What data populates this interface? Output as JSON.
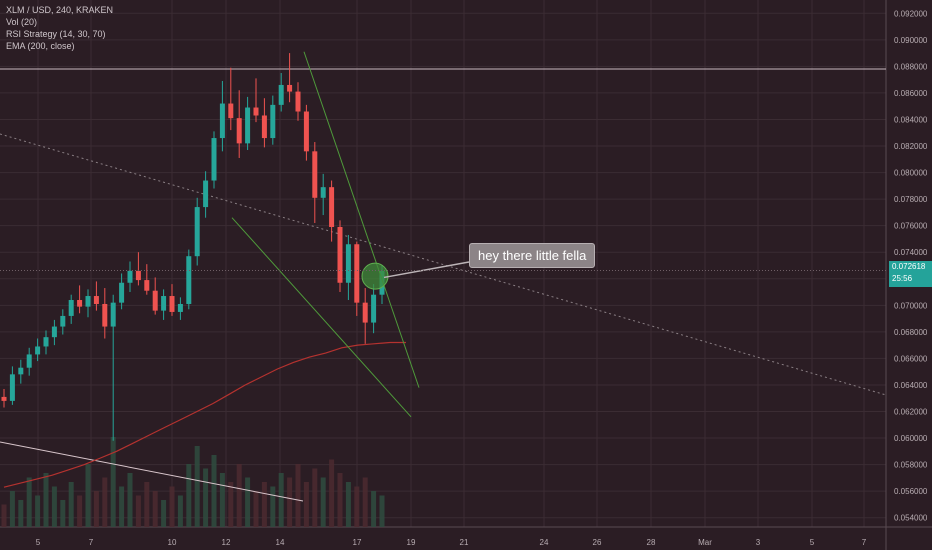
{
  "legend": {
    "symbol": "XLM / USD, 240, KRAKEN",
    "vol": "Vol (20)",
    "rsi": "RSI Strategy (14, 30, 70)",
    "ema": "EMA (200, close)"
  },
  "annotation": {
    "text": "hey there little fella"
  },
  "price_tag": {
    "price": "0.072618",
    "countdown": "25:56"
  },
  "colors": {
    "background": "#2b1d24",
    "grid": "#3b2c33",
    "up": "#26a69a",
    "down": "#ef5350",
    "ema": "#b5322f",
    "trendline": "#4f9a3b",
    "dotted_trend": "#8a7f84",
    "horizontal": "#c9b9c0"
  },
  "chart_data": {
    "type": "candlestick",
    "title": "XLM / USD, 240, KRAKEN",
    "y_axis": {
      "range": [
        0.0533,
        0.093
      ],
      "ticks": [
        "0.092000",
        "0.090000",
        "0.088000",
        "0.086000",
        "0.084000",
        "0.082000",
        "0.080000",
        "0.078000",
        "0.076000",
        "0.074000",
        "0.072000",
        "0.070000",
        "0.068000",
        "0.066000",
        "0.064000",
        "0.062000",
        "0.060000",
        "0.058000",
        "0.056000",
        "0.054000"
      ]
    },
    "x_axis": {
      "ticks": [
        "5",
        "7",
        "10",
        "12",
        "14",
        "17",
        "19",
        "21",
        "24",
        "26",
        "28",
        "Mar",
        "3",
        "5",
        "7"
      ]
    },
    "candles": [
      {
        "o": 0.0631,
        "h": 0.0637,
        "l": 0.0623,
        "c": 0.0628
      },
      {
        "o": 0.0628,
        "h": 0.0654,
        "l": 0.0625,
        "c": 0.0648
      },
      {
        "o": 0.0648,
        "h": 0.0659,
        "l": 0.0641,
        "c": 0.0653
      },
      {
        "o": 0.0653,
        "h": 0.0668,
        "l": 0.0647,
        "c": 0.0663
      },
      {
        "o": 0.0663,
        "h": 0.0675,
        "l": 0.0658,
        "c": 0.0669
      },
      {
        "o": 0.0669,
        "h": 0.0681,
        "l": 0.0663,
        "c": 0.0676
      },
      {
        "o": 0.0676,
        "h": 0.0689,
        "l": 0.067,
        "c": 0.0684
      },
      {
        "o": 0.0684,
        "h": 0.0697,
        "l": 0.0678,
        "c": 0.0692
      },
      {
        "o": 0.0692,
        "h": 0.0708,
        "l": 0.0686,
        "c": 0.0704
      },
      {
        "o": 0.0704,
        "h": 0.0715,
        "l": 0.0694,
        "c": 0.0699
      },
      {
        "o": 0.0699,
        "h": 0.0712,
        "l": 0.0691,
        "c": 0.0707
      },
      {
        "o": 0.0707,
        "h": 0.0718,
        "l": 0.0696,
        "c": 0.0701
      },
      {
        "o": 0.0701,
        "h": 0.0713,
        "l": 0.0675,
        "c": 0.0684
      },
      {
        "o": 0.0684,
        "h": 0.0708,
        "l": 0.0598,
        "c": 0.0702
      },
      {
        "o": 0.0702,
        "h": 0.0724,
        "l": 0.0697,
        "c": 0.0717
      },
      {
        "o": 0.0717,
        "h": 0.0733,
        "l": 0.071,
        "c": 0.0726
      },
      {
        "o": 0.0726,
        "h": 0.074,
        "l": 0.0715,
        "c": 0.0719
      },
      {
        "o": 0.0719,
        "h": 0.0731,
        "l": 0.0708,
        "c": 0.0711
      },
      {
        "o": 0.0711,
        "h": 0.0721,
        "l": 0.0693,
        "c": 0.0696
      },
      {
        "o": 0.0696,
        "h": 0.0712,
        "l": 0.0689,
        "c": 0.0707
      },
      {
        "o": 0.0707,
        "h": 0.0716,
        "l": 0.0692,
        "c": 0.0695
      },
      {
        "o": 0.0695,
        "h": 0.0706,
        "l": 0.0689,
        "c": 0.0701
      },
      {
        "o": 0.0701,
        "h": 0.0742,
        "l": 0.0697,
        "c": 0.0737
      },
      {
        "o": 0.0737,
        "h": 0.0781,
        "l": 0.073,
        "c": 0.0774
      },
      {
        "o": 0.0774,
        "h": 0.0801,
        "l": 0.0766,
        "c": 0.0794
      },
      {
        "o": 0.0794,
        "h": 0.0831,
        "l": 0.0788,
        "c": 0.0826
      },
      {
        "o": 0.0826,
        "h": 0.0869,
        "l": 0.0816,
        "c": 0.0852
      },
      {
        "o": 0.0852,
        "h": 0.0879,
        "l": 0.0832,
        "c": 0.0841
      },
      {
        "o": 0.0841,
        "h": 0.0862,
        "l": 0.0811,
        "c": 0.0822
      },
      {
        "o": 0.0822,
        "h": 0.0857,
        "l": 0.0817,
        "c": 0.0849
      },
      {
        "o": 0.0849,
        "h": 0.0871,
        "l": 0.0838,
        "c": 0.0843
      },
      {
        "o": 0.0843,
        "h": 0.0856,
        "l": 0.0819,
        "c": 0.0826
      },
      {
        "o": 0.0826,
        "h": 0.0858,
        "l": 0.0821,
        "c": 0.0851
      },
      {
        "o": 0.0851,
        "h": 0.0875,
        "l": 0.0846,
        "c": 0.0866
      },
      {
        "o": 0.0866,
        "h": 0.089,
        "l": 0.0853,
        "c": 0.0861
      },
      {
        "o": 0.0861,
        "h": 0.0868,
        "l": 0.0839,
        "c": 0.0846
      },
      {
        "o": 0.0846,
        "h": 0.0851,
        "l": 0.0809,
        "c": 0.0816
      },
      {
        "o": 0.0816,
        "h": 0.0823,
        "l": 0.0762,
        "c": 0.0781
      },
      {
        "o": 0.0781,
        "h": 0.0799,
        "l": 0.0768,
        "c": 0.0789
      },
      {
        "o": 0.0789,
        "h": 0.0794,
        "l": 0.0748,
        "c": 0.0759
      },
      {
        "o": 0.0759,
        "h": 0.0764,
        "l": 0.071,
        "c": 0.0717
      },
      {
        "o": 0.0717,
        "h": 0.0753,
        "l": 0.0704,
        "c": 0.0746
      },
      {
        "o": 0.0746,
        "h": 0.0748,
        "l": 0.0692,
        "c": 0.0702
      },
      {
        "o": 0.0702,
        "h": 0.0713,
        "l": 0.0671,
        "c": 0.0687
      },
      {
        "o": 0.0687,
        "h": 0.0716,
        "l": 0.0679,
        "c": 0.0708
      },
      {
        "o": 0.0708,
        "h": 0.073,
        "l": 0.0701,
        "c": 0.0726
      }
    ],
    "ema": [
      0.0563,
      0.0566,
      0.0569,
      0.0572,
      0.0576,
      0.058,
      0.0585,
      0.059,
      0.0596,
      0.0602,
      0.0608,
      0.0614,
      0.062,
      0.0626,
      0.0633,
      0.064,
      0.0646,
      0.0652,
      0.0657,
      0.0661,
      0.0664,
      0.0668,
      0.067,
      0.0671,
      0.0672,
      0.0672
    ],
    "volume": [
      0.25,
      0.4,
      0.3,
      0.55,
      0.35,
      0.6,
      0.45,
      0.3,
      0.5,
      0.35,
      0.7,
      0.4,
      0.55,
      1.0,
      0.45,
      0.6,
      0.35,
      0.5,
      0.4,
      0.3,
      0.45,
      0.35,
      0.7,
      0.9,
      0.65,
      0.8,
      0.6,
      0.5,
      0.7,
      0.55,
      0.4,
      0.5,
      0.45,
      0.6,
      0.55,
      0.7,
      0.5,
      0.65,
      0.55,
      0.75,
      0.6,
      0.5,
      0.45,
      0.55,
      0.4,
      0.35
    ]
  }
}
